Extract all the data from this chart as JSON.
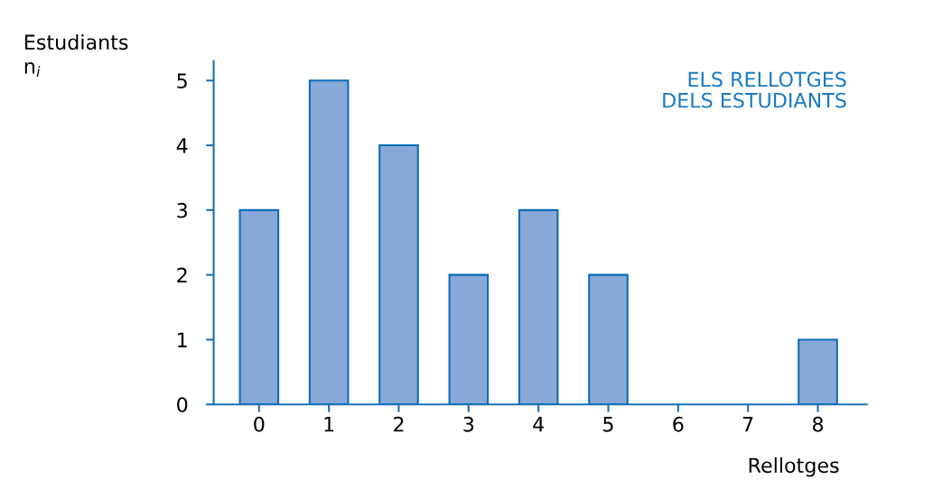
{
  "chart_data": {
    "type": "bar",
    "title": "ELS RELLOTGES\nDELS ESTUDIANTS",
    "ylabel": "Estudiants\nn$_{i}$",
    "xlabel": "Rellotges",
    "categories": [
      "0",
      "1",
      "2",
      "3",
      "4",
      "5",
      "6",
      "7",
      "8"
    ],
    "values": [
      3,
      5,
      4,
      2,
      3,
      2,
      0,
      0,
      1
    ],
    "color": "#88a8d8",
    "ylim": [
      0,
      5.3
    ],
    "yticks": [
      0,
      1,
      2,
      3,
      4,
      5
    ],
    "grid": false,
    "legend": false
  }
}
